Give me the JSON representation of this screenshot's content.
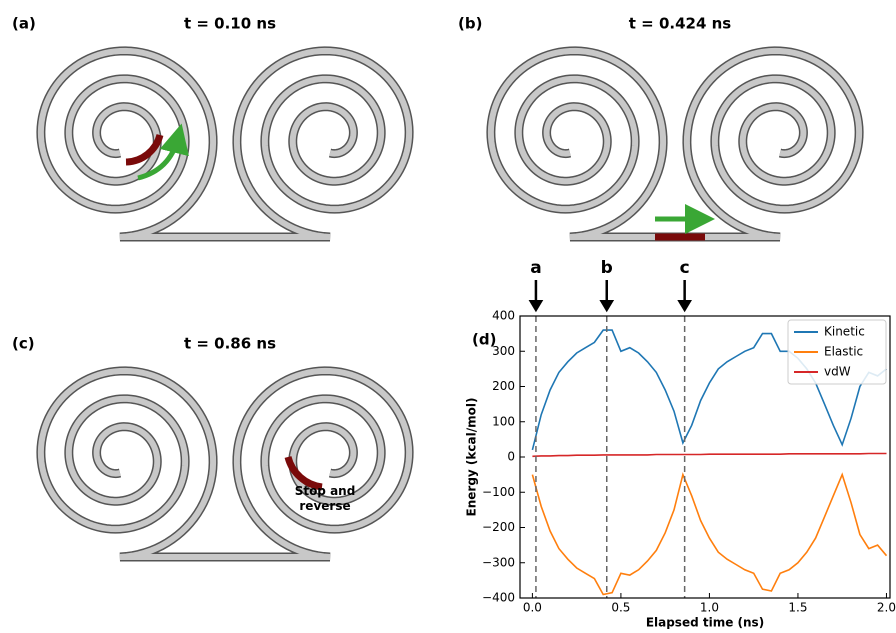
{
  "panels": [
    {
      "label": "(a)",
      "title": "t = 0.10 ns"
    },
    {
      "label": "(b)",
      "title": "t = 0.424 ns"
    },
    {
      "label": "(c)",
      "title": "t = 0.86 ns",
      "annotation": "Stop and reverse"
    },
    {
      "label": "(d)"
    }
  ],
  "chart_data": {
    "type": "line",
    "ylabel": "Energy (kcal/mol)",
    "xlabel": "Elapsed time (ns)",
    "x": [
      0.0,
      0.05,
      0.1,
      0.15,
      0.2,
      0.25,
      0.3,
      0.35,
      0.4,
      0.45,
      0.5,
      0.55,
      0.6,
      0.65,
      0.7,
      0.75,
      0.8,
      0.85,
      0.9,
      0.95,
      1.0,
      1.05,
      1.1,
      1.15,
      1.2,
      1.25,
      1.3,
      1.35,
      1.4,
      1.45,
      1.5,
      1.55,
      1.6,
      1.65,
      1.7,
      1.75,
      1.8,
      1.85,
      1.9,
      1.95,
      2.0
    ],
    "series": [
      {
        "name": "Kinetic",
        "color": "#1f77b4",
        "values": [
          20,
          120,
          190,
          240,
          270,
          295,
          310,
          325,
          360,
          360,
          300,
          310,
          295,
          270,
          240,
          190,
          130,
          40,
          90,
          160,
          210,
          250,
          270,
          285,
          300,
          310,
          350,
          350,
          300,
          300,
          280,
          250,
          210,
          150,
          90,
          35,
          110,
          200,
          240,
          230,
          250
        ]
      },
      {
        "name": "Elastic",
        "color": "#ff7f0e",
        "values": [
          -50,
          -140,
          -210,
          -260,
          -290,
          -315,
          -330,
          -345,
          -390,
          -385,
          -330,
          -335,
          -320,
          -295,
          -265,
          -215,
          -150,
          -50,
          -110,
          -180,
          -230,
          -270,
          -290,
          -305,
          -320,
          -330,
          -375,
          -380,
          -330,
          -320,
          -300,
          -270,
          -230,
          -170,
          -110,
          -50,
          -130,
          -220,
          -260,
          -250,
          -280
        ]
      },
      {
        "name": "vdW",
        "color": "#d62728",
        "values": [
          2,
          3,
          3,
          4,
          4,
          5,
          5,
          5,
          6,
          6,
          6,
          6,
          6,
          6,
          7,
          7,
          7,
          7,
          7,
          7,
          8,
          8,
          8,
          8,
          8,
          8,
          8,
          8,
          8,
          9,
          9,
          9,
          9,
          9,
          9,
          9,
          9,
          9,
          10,
          10,
          10
        ]
      }
    ],
    "xlim": [
      -0.07,
      2.02
    ],
    "ylim": [
      -400,
      400
    ],
    "xticks": [
      {
        "value": 0.0,
        "label": "0.0"
      },
      {
        "value": 0.5,
        "label": "0.5"
      },
      {
        "value": 1.0,
        "label": "1.0"
      },
      {
        "value": 1.5,
        "label": "1.5"
      },
      {
        "value": 2.0,
        "label": "2.0"
      }
    ],
    "yticks": [
      {
        "value": -400,
        "label": "−400"
      },
      {
        "value": -300,
        "label": "−300"
      },
      {
        "value": -200,
        "label": "−200"
      },
      {
        "value": -100,
        "label": "−100"
      },
      0,
      100,
      200,
      300,
      400
    ],
    "markers": [
      {
        "label": "a",
        "x": 0.02
      },
      {
        "label": "b",
        "x": 0.42
      },
      {
        "label": "c",
        "x": 0.86
      }
    ],
    "legend": "upper right"
  }
}
